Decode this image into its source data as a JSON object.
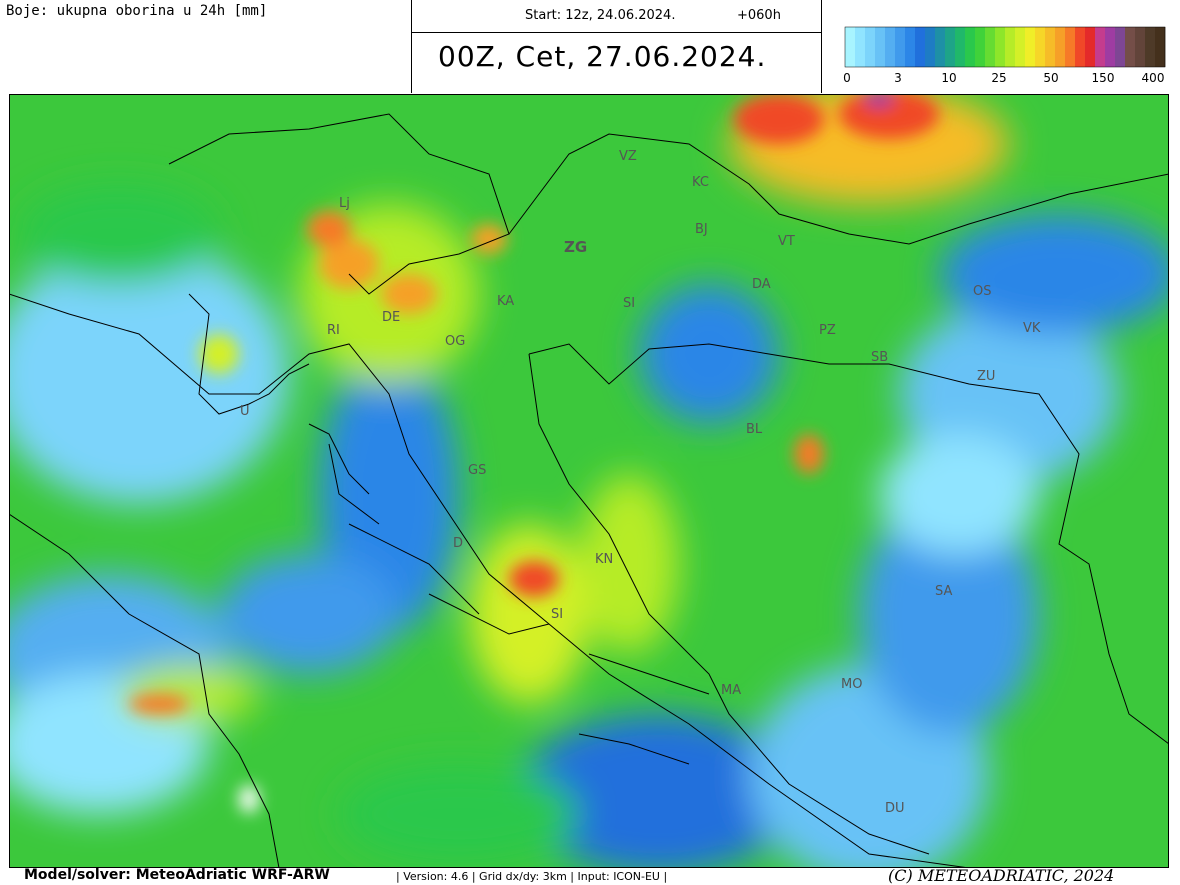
{
  "header": {
    "field_label": "Boje: ukupna oborina u 24h [mm]",
    "start": "Start: 12z, 24.06.2024.",
    "lead": "+060h",
    "valid": "00Z, Cet, 27.06.2024."
  },
  "legend": {
    "colors": [
      "#a8f4ff",
      "#90e4ff",
      "#7cd4fb",
      "#68c2f6",
      "#54aef1",
      "#409aec",
      "#2c86e7",
      "#2070dc",
      "#1e7cc4",
      "#1e90a6",
      "#1ea488",
      "#20b86a",
      "#2ac84c",
      "#40d23a",
      "#66dc32",
      "#8ee62a",
      "#b6ec28",
      "#d4f028",
      "#f0ee28",
      "#f6d628",
      "#f6bc28",
      "#f6a028",
      "#f67a28",
      "#f04828",
      "#e42a2a",
      "#c43c8e",
      "#9e3ca2",
      "#7e4694",
      "#744e48",
      "#62443a",
      "#4e3a28",
      "#44301c"
    ],
    "ticks": [
      "0",
      "3",
      "10",
      "25",
      "50",
      "150",
      "400"
    ]
  },
  "map": {
    "places": [
      "Lj",
      "ZG",
      "VZ",
      "KC",
      "BJ",
      "VT",
      "DA",
      "KA",
      "SI",
      "DE",
      "OG",
      "RI",
      "OS",
      "VK",
      "PZ",
      "SB",
      "ZU",
      "BL",
      "GS",
      "D",
      "KN",
      "SI",
      "SA",
      "MO",
      "MA",
      "DU",
      "U"
    ]
  },
  "footer": {
    "model": "Model/solver: MeteoAdriatic WRF-ARW",
    "info": "| Version: 4.6 | Grid dx/dy: 3km | Input: ICON-EU |",
    "copyright": "(C) METEOADRIATIC, 2024"
  }
}
